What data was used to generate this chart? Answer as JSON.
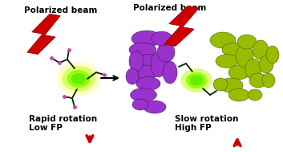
{
  "bg_color": "#ffffff",
  "left_label_top": "Polarized beam",
  "right_label_top": "Polarized beam",
  "left_label_bottom1": "Rapid rotation",
  "left_label_bottom2": "Low FP",
  "right_label_bottom1": "Slow rotation",
  "right_label_bottom2": "High FP",
  "arrow_color": "#cc0000",
  "text_color": "#000000",
  "lightning_color": "#cc0000",
  "glow_color": "#66ff00",
  "protein_left_color": "#9933cc",
  "protein_right_color": "#99bb00",
  "fig_width": 3.53,
  "fig_height": 1.89,
  "dpi": 100,
  "fontsize": 7.5
}
